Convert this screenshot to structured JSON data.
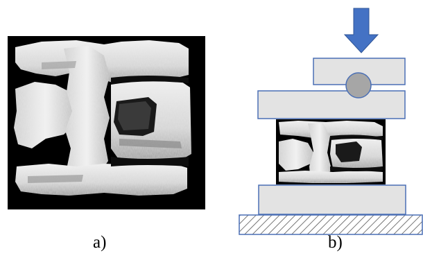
{
  "figure": {
    "panels": [
      {
        "id": "a",
        "label": "a)"
      },
      {
        "id": "b",
        "label": "b)"
      }
    ]
  },
  "colors": {
    "background": "#ffffff",
    "scan_background": "#000000",
    "bone_light": "#e6e6e6",
    "bone_mid": "#bdbdbd",
    "bone_dark": "#7a7a7a",
    "plate_fill": "#e3e3e3",
    "plate_stroke": "#4a6fb5",
    "ball_fill": "#a6a6a6",
    "arrow_fill": "#4472c4",
    "base_hatch": "#555555"
  }
}
